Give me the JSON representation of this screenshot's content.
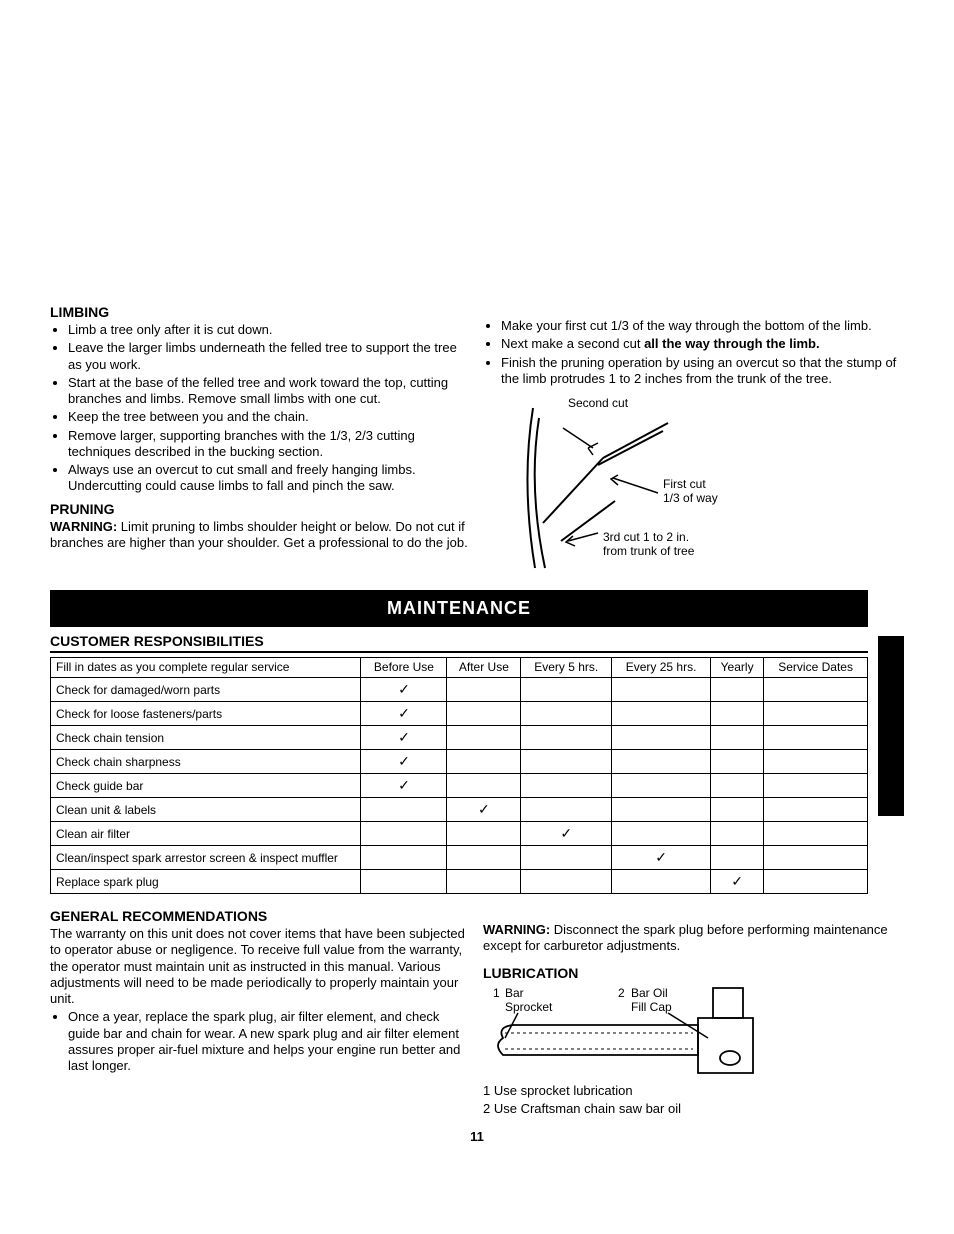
{
  "limbing": {
    "heading": "LIMBING",
    "items": [
      "Limb a tree only after it is cut down.",
      "Leave the larger limbs underneath the felled tree to support the tree as you work.",
      "Start at the base of the felled tree and work toward the top, cutting branches and limbs. Remove small limbs with one cut.",
      "Keep the tree between you and the chain.",
      "Remove larger, supporting branches with the 1/3, 2/3 cutting techniques described in the bucking section.",
      "Always use an overcut to cut small and freely hanging limbs. Undercutting could cause limbs to fall and pinch the saw."
    ]
  },
  "pruning": {
    "heading": "PRUNING",
    "warning_label": "WARNING:",
    "warning_text": " Limit pruning to limbs shoulder height or below. Do not cut if branches are higher than your shoulder. Get a professional to do the job.",
    "items": [
      "Make your first cut 1/3 of the way through the bottom of the limb.",
      "",
      "Finish the pruning operation by using an overcut so that the stump of the limb protrudes 1 to 2 inches from the trunk of the tree."
    ],
    "item_second_pre": "Next make a second cut ",
    "item_second_bold": "all the way through the limb."
  },
  "diagram_pruning": {
    "label_second": "Second cut",
    "label_first1": "First cut",
    "label_first2": "1/3 of way",
    "label_third1": "3rd cut 1 to 2 in.",
    "label_third2": "from trunk of tree"
  },
  "maintenance_banner": "MAINTENANCE",
  "table": {
    "heading": "CUSTOMER RESPONSIBILITIES",
    "h_fill": "Fill in dates as you complete regular service",
    "h_before": "Before Use",
    "h_after": "After Use",
    "h_5": "Every 5 hrs.",
    "h_25": "Every 25 hrs.",
    "h_yearly": "Yearly",
    "h_dates": "Service Dates",
    "rows": [
      {
        "label": "Check for damaged/worn parts",
        "c": [
          true,
          false,
          false,
          false,
          false
        ]
      },
      {
        "label": "Check for loose fasteners/parts",
        "c": [
          true,
          false,
          false,
          false,
          false
        ]
      },
      {
        "label": "Check chain tension",
        "c": [
          true,
          false,
          false,
          false,
          false
        ]
      },
      {
        "label": "Check chain sharpness",
        "c": [
          true,
          false,
          false,
          false,
          false
        ]
      },
      {
        "label": "Check guide bar",
        "c": [
          true,
          false,
          false,
          false,
          false
        ]
      },
      {
        "label": "Clean unit & labels",
        "c": [
          false,
          true,
          false,
          false,
          false
        ]
      },
      {
        "label": "Clean air filter",
        "c": [
          false,
          false,
          true,
          false,
          false
        ]
      },
      {
        "label": "Clean/inspect spark arrestor screen & inspect muffler",
        "c": [
          false,
          false,
          false,
          true,
          false
        ]
      },
      {
        "label": "Replace spark plug",
        "c": [
          false,
          false,
          false,
          false,
          true
        ]
      }
    ],
    "check_glyph": "✓"
  },
  "general": {
    "heading": "GENERAL RECOMMENDATIONS",
    "body": "The warranty on this unit does not cover items that have been subjected to operator abuse or negligence. To receive full value from the warranty, the operator must maintain unit as instructed in this manual. Various adjustments will need to be made periodically to properly maintain your unit.",
    "bullet": "Once a year, replace the spark plug, air filter element, and check guide bar and chain for wear. A new spark plug and air filter element assures proper air-fuel mixture and helps your engine run better and last longer.",
    "warning_label": "WARNING:",
    "warning_text": " Disconnect the spark plug before performing maintenance except for carburetor adjustments."
  },
  "lubrication": {
    "heading": "LUBRICATION",
    "label1_num": "1",
    "label1_a": "Bar",
    "label1_b": "Sprocket",
    "label2_num": "2",
    "label2_a": "Bar Oil",
    "label2_b": "Fill Cap",
    "note1": "1  Use sprocket lubrication",
    "note2": "2  Use Craftsman chain saw bar oil"
  },
  "page_number": "11"
}
